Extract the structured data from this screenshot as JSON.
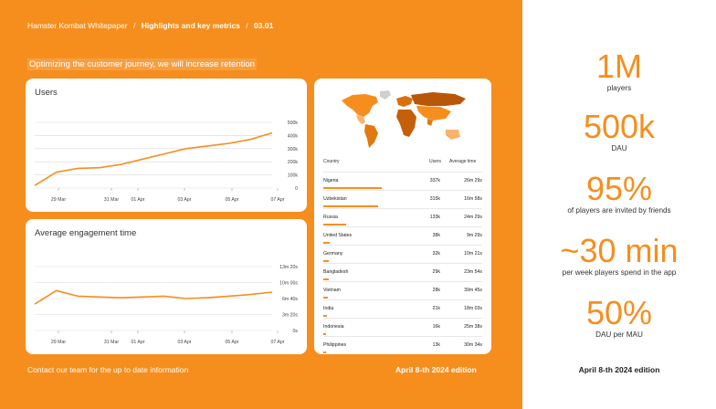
{
  "breadcrumb": {
    "part1": "Hamster Kombat Whitepaper",
    "sep": "/",
    "part2": "Highlights and key metrics",
    "part3": "03.01"
  },
  "subtitle": "Optimizing the customer journey, we will increase retention",
  "colors": {
    "accent": "#F68E1E",
    "white": "#FFFFFF"
  },
  "chart_data": [
    {
      "type": "line",
      "title": "Users",
      "x_ticks": [
        "29 Mar",
        "31 Mar",
        "01 Apr",
        "03 Apr",
        "05 Apr",
        "07 Apr"
      ],
      "y_ticks": [
        "500k",
        "400k",
        "300k",
        "200k",
        "100k",
        "0"
      ],
      "ylim": [
        0,
        500000
      ],
      "x_dates": [
        "27 Mar",
        "28 Mar",
        "29 Mar",
        "30 Mar",
        "31 Mar",
        "01 Apr",
        "02 Apr",
        "03 Apr",
        "04 Apr",
        "05 Apr",
        "06 Apr",
        "07 Apr"
      ],
      "values": [
        20000,
        120000,
        150000,
        155000,
        180000,
        220000,
        260000,
        300000,
        320000,
        340000,
        370000,
        420000
      ],
      "grid": true
    },
    {
      "type": "line",
      "title": "Average engagement time",
      "x_ticks": [
        "29 Mar",
        "31 Mar",
        "01 Apr",
        "03 Apr",
        "05 Apr",
        "07 Apr"
      ],
      "y_ticks": [
        "13m 20s",
        "10m 00s",
        "6m 40s",
        "3m 20s",
        "0s"
      ],
      "ylim": [
        0,
        800
      ],
      "x_dates": [
        "27 Mar",
        "28 Mar",
        "29 Mar",
        "30 Mar",
        "31 Mar",
        "01 Apr",
        "02 Apr",
        "03 Apr",
        "04 Apr",
        "05 Apr",
        "06 Apr",
        "07 Apr"
      ],
      "values": [
        330,
        500,
        430,
        420,
        410,
        420,
        430,
        400,
        410,
        430,
        450,
        480
      ],
      "grid": true
    }
  ],
  "country_table": {
    "headers": [
      "Country",
      "Users",
      "Average time"
    ],
    "rows": [
      {
        "country": "Nigeria",
        "users": "337k",
        "time": "26m 29s",
        "share": 1.0
      },
      {
        "country": "Uzbekistan",
        "users": "315k",
        "time": "16m 58s",
        "share": 0.93
      },
      {
        "country": "Russia",
        "users": "133k",
        "time": "24m 29s",
        "share": 0.39
      },
      {
        "country": "United States",
        "users": "38k",
        "time": "9m 29s",
        "share": 0.11
      },
      {
        "country": "Germany",
        "users": "32k",
        "time": "10m 21s",
        "share": 0.09
      },
      {
        "country": "Bangladesh",
        "users": "29k",
        "time": "23m 54s",
        "share": 0.09
      },
      {
        "country": "Vietnam",
        "users": "28k",
        "time": "39m 45s",
        "share": 0.08
      },
      {
        "country": "India",
        "users": "21k",
        "time": "18m 03s",
        "share": 0.06
      },
      {
        "country": "Indonesia",
        "users": "16k",
        "time": "25m 38s",
        "share": 0.05
      },
      {
        "country": "Philippines",
        "users": "13k",
        "time": "30m 34s",
        "share": 0.04
      }
    ]
  },
  "footer": {
    "contact": "Contact our team for the up to date information",
    "edition": "April 8-th 2024 edition"
  },
  "metrics": [
    {
      "value": "1M",
      "label": "players"
    },
    {
      "value": "500k",
      "label": "DAU"
    },
    {
      "value": "95%",
      "label": "of players are invited by friends"
    },
    {
      "value": "~30 min",
      "label": "per week players spend in the app"
    },
    {
      "value": "50%",
      "label": "DAU per MAU"
    }
  ],
  "right_edition": "April 8-th 2024 edition"
}
